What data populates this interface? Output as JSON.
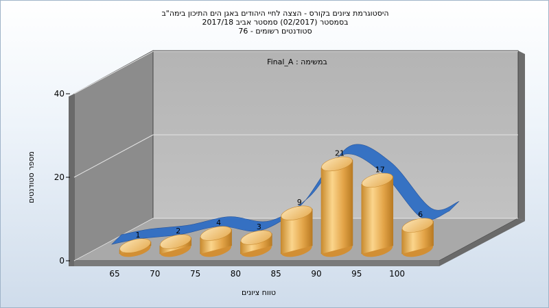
{
  "chart_data": {
    "type": "bar",
    "title_lines": [
      "היסטוגרמת ציונים בקורס - הצצה לחיי היהודים באגן הים התיכון בימה\"ב",
      "בסמסטר  (02/2017)  סמסטר אביב 2017/18",
      "סטודנטים רשומים - 76"
    ],
    "annotation": "במשימה : Final_A",
    "xlabel": "טווח ציונים",
    "ylabel": "מספר סטודנטים",
    "categories": [
      "65",
      "70",
      "75",
      "80",
      "85",
      "90",
      "95",
      "100"
    ],
    "values": [
      1,
      2,
      4,
      3,
      9,
      21,
      17,
      6
    ],
    "y_ticks": [
      "0",
      "20",
      "40"
    ],
    "ylim": [
      0,
      40
    ],
    "series": [
      {
        "values": [
          1,
          2,
          4,
          3,
          9,
          21,
          17,
          6
        ],
        "kind": "bar"
      },
      {
        "values": [
          1,
          2,
          4,
          3,
          9,
          21,
          17,
          6
        ],
        "kind": "smooth-ribbon"
      }
    ],
    "colors": {
      "bar": "#e3a448",
      "bar_light": "#fbd58c",
      "bar_dark": "#b87a22",
      "curve": "#2f6ec4"
    },
    "grid": true,
    "legend": "none"
  }
}
